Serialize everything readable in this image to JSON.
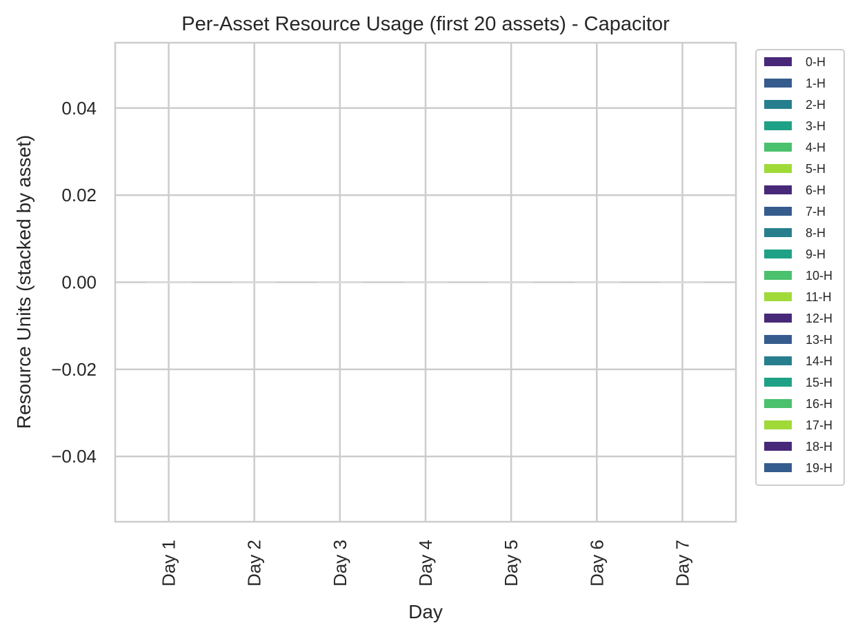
{
  "chart_data": {
    "type": "bar",
    "stacked": true,
    "title": "Per-Asset Resource Usage (first 20 assets) - Capacitor",
    "xlabel": "Day",
    "ylabel": "Resource Units (stacked by asset)",
    "categories": [
      "Day 1",
      "Day 2",
      "Day 3",
      "Day 4",
      "Day 5",
      "Day 6",
      "Day 7"
    ],
    "ylim": [
      -0.055,
      0.055
    ],
    "yticks": [
      -0.04,
      -0.02,
      0.0,
      0.02,
      0.04
    ],
    "ytick_labels": [
      "−0.04",
      "−0.02",
      "0.00",
      "0.02",
      "0.04"
    ],
    "grid": true,
    "legend_placement": "outside-right",
    "series": [
      {
        "name": "0-H",
        "color": "#482878",
        "values": [
          0,
          0,
          0,
          0,
          0,
          0,
          0
        ]
      },
      {
        "name": "1-H",
        "color": "#365c8d",
        "values": [
          0,
          0,
          0,
          0,
          0,
          0,
          0
        ]
      },
      {
        "name": "2-H",
        "color": "#277f8e",
        "values": [
          0,
          0,
          0,
          0,
          0,
          0,
          0
        ]
      },
      {
        "name": "3-H",
        "color": "#1fa187",
        "values": [
          0,
          0,
          0,
          0,
          0,
          0,
          0
        ]
      },
      {
        "name": "4-H",
        "color": "#4ac16d",
        "values": [
          0,
          0,
          0,
          0,
          0,
          0,
          0
        ]
      },
      {
        "name": "5-H",
        "color": "#a0da39",
        "values": [
          0,
          0,
          0,
          0,
          0,
          0,
          0
        ]
      },
      {
        "name": "6-H",
        "color": "#482878",
        "values": [
          0,
          0,
          0,
          0,
          0,
          0,
          0
        ]
      },
      {
        "name": "7-H",
        "color": "#365c8d",
        "values": [
          0,
          0,
          0,
          0,
          0,
          0,
          0
        ]
      },
      {
        "name": "8-H",
        "color": "#277f8e",
        "values": [
          0,
          0,
          0,
          0,
          0,
          0,
          0
        ]
      },
      {
        "name": "9-H",
        "color": "#1fa187",
        "values": [
          0,
          0,
          0,
          0,
          0,
          0,
          0
        ]
      },
      {
        "name": "10-H",
        "color": "#4ac16d",
        "values": [
          0,
          0,
          0,
          0,
          0,
          0,
          0
        ]
      },
      {
        "name": "11-H",
        "color": "#a0da39",
        "values": [
          0,
          0,
          0,
          0,
          0,
          0,
          0
        ]
      },
      {
        "name": "12-H",
        "color": "#482878",
        "values": [
          0,
          0,
          0,
          0,
          0,
          0,
          0
        ]
      },
      {
        "name": "13-H",
        "color": "#365c8d",
        "values": [
          0,
          0,
          0,
          0,
          0,
          0,
          0
        ]
      },
      {
        "name": "14-H",
        "color": "#277f8e",
        "values": [
          0,
          0,
          0,
          0,
          0,
          0,
          0
        ]
      },
      {
        "name": "15-H",
        "color": "#1fa187",
        "values": [
          0,
          0,
          0,
          0,
          0,
          0,
          0
        ]
      },
      {
        "name": "16-H",
        "color": "#4ac16d",
        "values": [
          0,
          0,
          0,
          0,
          0,
          0,
          0
        ]
      },
      {
        "name": "17-H",
        "color": "#a0da39",
        "values": [
          0,
          0,
          0,
          0,
          0,
          0,
          0
        ]
      },
      {
        "name": "18-H",
        "color": "#482878",
        "values": [
          0,
          0,
          0,
          0,
          0,
          0,
          0
        ]
      },
      {
        "name": "19-H",
        "color": "#365c8d",
        "values": [
          0,
          0,
          0,
          0,
          0,
          0,
          0
        ]
      }
    ],
    "colors": {
      "grid": "#cccccc",
      "spine": "#cccccc",
      "zero_bar_edge": "#d9d9d9"
    }
  }
}
